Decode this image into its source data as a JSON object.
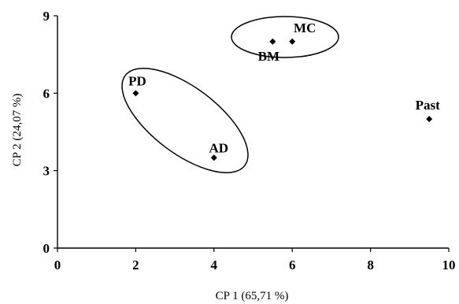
{
  "chart_data": {
    "type": "scatter",
    "xlabel": "CP 1 (65,71 %)",
    "ylabel": "CP 2 (24,07 %)",
    "xlim": [
      0,
      10
    ],
    "ylim": [
      0,
      9
    ],
    "xticks": [
      "0",
      "2",
      "4",
      "6",
      "8",
      "10"
    ],
    "yticks": [
      "0",
      "3",
      "6",
      "9"
    ],
    "grid": false,
    "points": [
      {
        "label": "PD",
        "x": 2.0,
        "y": 6.0
      },
      {
        "label": "AD",
        "x": 4.0,
        "y": 3.5
      },
      {
        "label": "BM",
        "x": 5.5,
        "y": 8.0
      },
      {
        "label": "MC",
        "x": 6.0,
        "y": 8.0
      },
      {
        "label": "Past",
        "x": 9.5,
        "y": 5.0
      }
    ],
    "groups": [
      {
        "members": [
          "PD",
          "AD"
        ]
      },
      {
        "members": [
          "BM",
          "MC"
        ]
      }
    ]
  }
}
